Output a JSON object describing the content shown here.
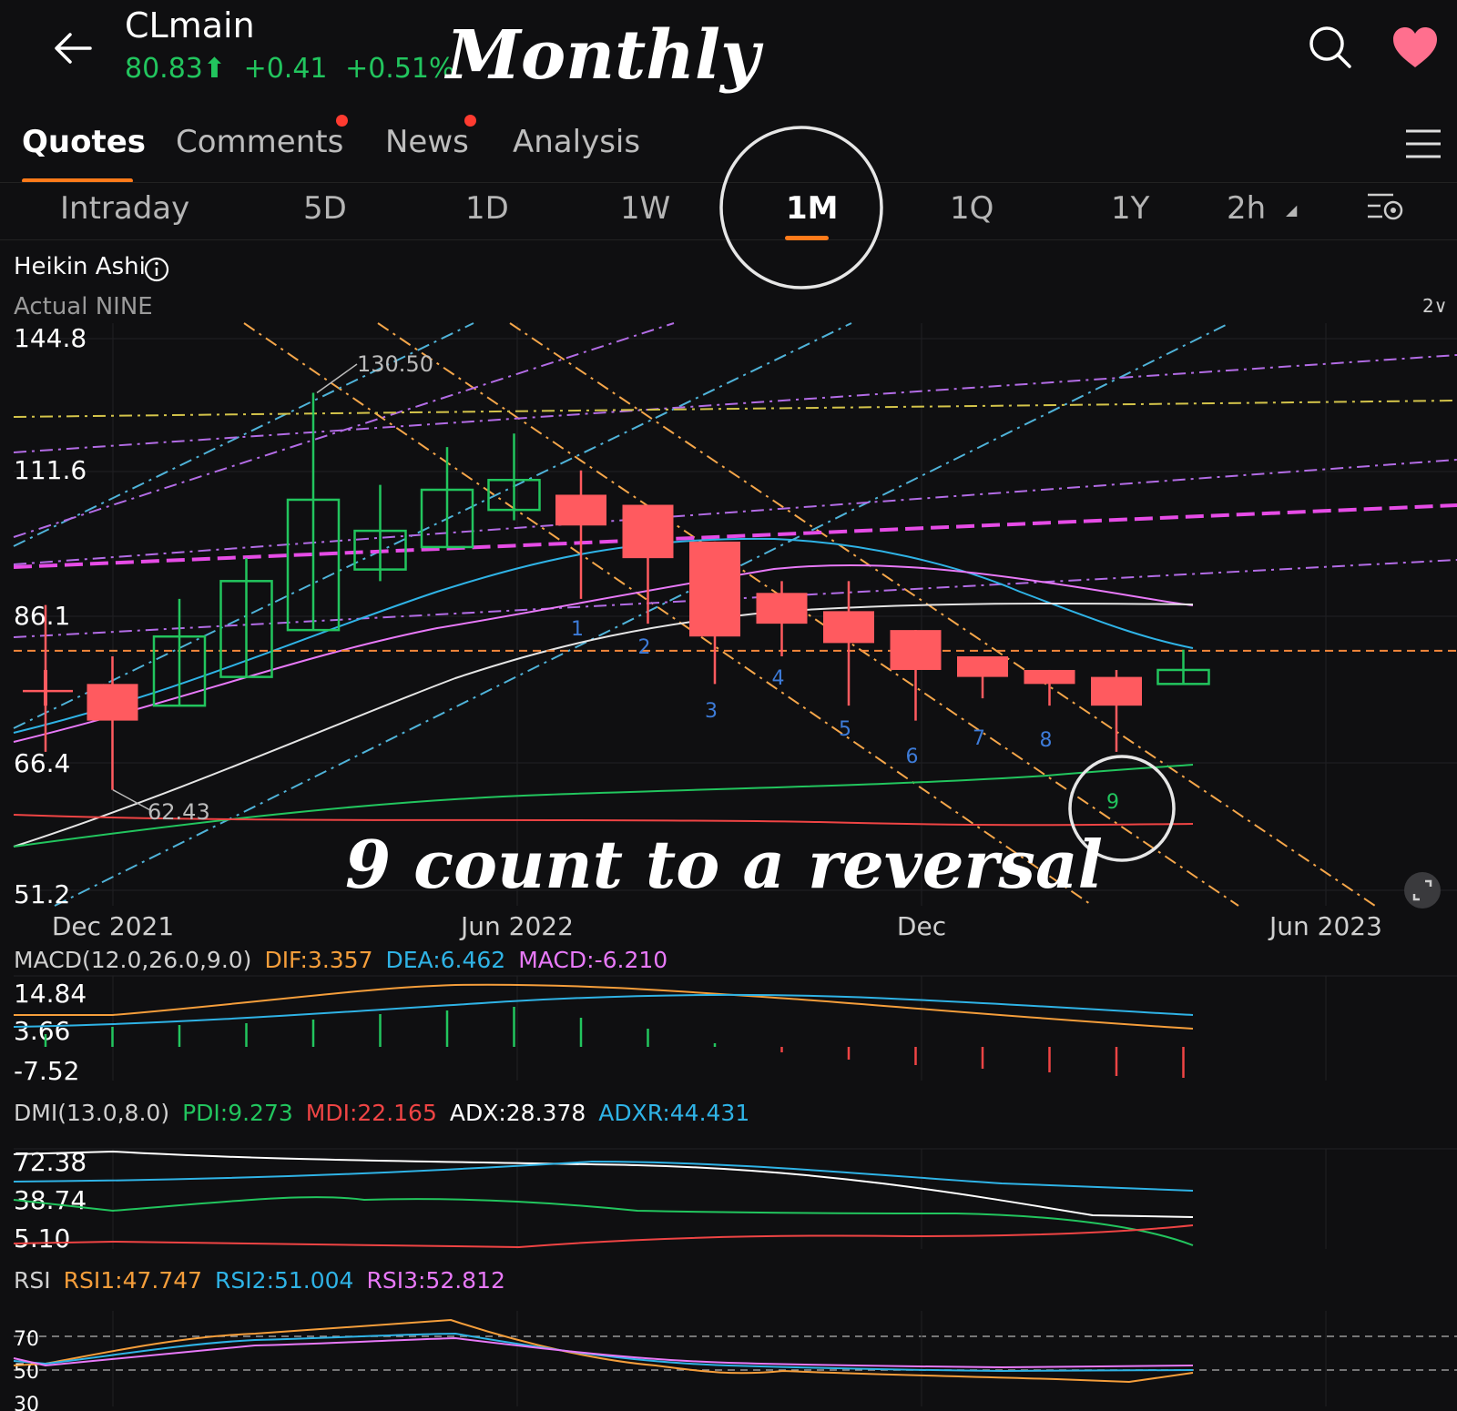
{
  "header": {
    "symbol": "CLmain",
    "price": "80.83",
    "change": "+0.41",
    "change_pct": "+0.51%",
    "overlay_title": "Monthly",
    "icons": [
      "back-arrow-icon",
      "search-icon",
      "heart-icon"
    ],
    "up_color": "#22c55e"
  },
  "tabs": [
    {
      "label": "Quotes",
      "active": true
    },
    {
      "label": "Comments",
      "dot": true
    },
    {
      "label": "News",
      "dot": true
    },
    {
      "label": "Analysis"
    }
  ],
  "ranges": {
    "items": [
      "Intraday",
      "5D",
      "1D",
      "1W",
      "1M",
      "1Q",
      "1Y",
      "2h"
    ],
    "active": "1M"
  },
  "chart_header": {
    "type_label": "Heikin Ashi",
    "sub_label": "Actual  NINE",
    "collapse": "2∨"
  },
  "annotation": "9 count to a reversal",
  "chart_data": [
    {
      "type": "candlestick",
      "title": "Heikin Ashi",
      "y_ticks": [
        "144.8",
        "111.6",
        "86.1",
        "66.4",
        "51.2"
      ],
      "x_ticks": [
        "Dec 2021",
        "Jun 2022",
        "Dec",
        "Jun 2023"
      ],
      "hi_label": "130.50",
      "lo_label": "62.43",
      "ref_price": 80.83,
      "candles": [
        {
          "x": "2021-11",
          "open": 73,
          "close": 78,
          "high": 88,
          "low": 67,
          "up": false
        },
        {
          "x": "2021-12",
          "open": 71,
          "close": 76,
          "high": 80,
          "low": 62.43,
          "up": false
        },
        {
          "x": "2022-01",
          "open": 73,
          "close": 83,
          "high": 89,
          "low": 73,
          "up": true
        },
        {
          "x": "2022-02",
          "open": 77,
          "close": 92,
          "high": 96,
          "low": 77,
          "up": true
        },
        {
          "x": "2022-03",
          "open": 84,
          "close": 107,
          "high": 130.5,
          "low": 84,
          "up": true
        },
        {
          "x": "2022-04",
          "open": 94,
          "close": 101,
          "high": 110,
          "low": 92,
          "up": true
        },
        {
          "x": "2022-05",
          "open": 98,
          "close": 109,
          "high": 118,
          "low": 98,
          "up": true
        },
        {
          "x": "2022-06",
          "open": 105,
          "close": 111,
          "high": 121,
          "low": 103,
          "up": true
        },
        {
          "x": "2022-07",
          "open": 108,
          "close": 102,
          "high": 113,
          "low": 89,
          "up": false
        },
        {
          "x": "2022-08",
          "open": 106,
          "close": 96,
          "high": 106,
          "low": 85,
          "up": false
        },
        {
          "x": "2022-09",
          "open": 99,
          "close": 83,
          "high": 99,
          "low": 76,
          "up": false
        },
        {
          "x": "2022-10",
          "open": 90,
          "close": 85,
          "high": 92,
          "low": 80,
          "up": false
        },
        {
          "x": "2022-11",
          "open": 87,
          "close": 82,
          "high": 92,
          "low": 73,
          "up": false
        },
        {
          "x": "2022-12",
          "open": 84,
          "close": 78,
          "high": 84,
          "low": 71,
          "up": false
        },
        {
          "x": "2023-01",
          "open": 80,
          "close": 77,
          "high": 80,
          "low": 74,
          "up": false
        },
        {
          "x": "2023-02",
          "open": 78,
          "close": 76,
          "high": 78,
          "low": 73,
          "up": false
        },
        {
          "x": "2023-03",
          "open": 77,
          "close": 73,
          "high": 78,
          "low": 67,
          "up": false
        },
        {
          "x": "2023-04",
          "open": 76,
          "close": 78,
          "high": 81,
          "low": 76,
          "up": true
        }
      ],
      "nine_count": [
        "1",
        "2",
        "3",
        "4",
        "5",
        "6",
        "7",
        "8",
        "9"
      ]
    },
    {
      "type": "line",
      "title": "MACD(12.0,26.0,9.0)",
      "values": {
        "DIF": "DIF:3.357",
        "DEA": "DEA:6.462",
        "MACD": "MACD:-6.210"
      },
      "y_ticks": [
        "14.84",
        "3.66",
        "-7.52"
      ],
      "colors": {
        "DIF": "#f59e3b",
        "DEA": "#2fb3e6",
        "MACD": "#e879f9"
      }
    },
    {
      "type": "line",
      "title": "DMI(13.0,8.0)",
      "values": {
        "PDI": "PDI:9.273",
        "MDI": "MDI:22.165",
        "ADX": "ADX:28.378",
        "ADXR": "ADXR:44.431"
      },
      "y_ticks": [
        "72.38",
        "38.74",
        "5.10"
      ],
      "colors": {
        "PDI": "#22c55e",
        "MDI": "#ef4444",
        "ADX": "#ffffff",
        "ADXR": "#2fb3e6"
      }
    },
    {
      "type": "line",
      "title": "RSI",
      "values": {
        "RSI1": "RSI1:47.747",
        "RSI2": "RSI2:51.004",
        "RSI3": "RSI3:52.812"
      },
      "y_ticks": [
        "70",
        "50",
        "30"
      ],
      "colors": {
        "RSI1": "#f59e3b",
        "RSI2": "#2fb3e6",
        "RSI3": "#e879f9"
      }
    }
  ]
}
